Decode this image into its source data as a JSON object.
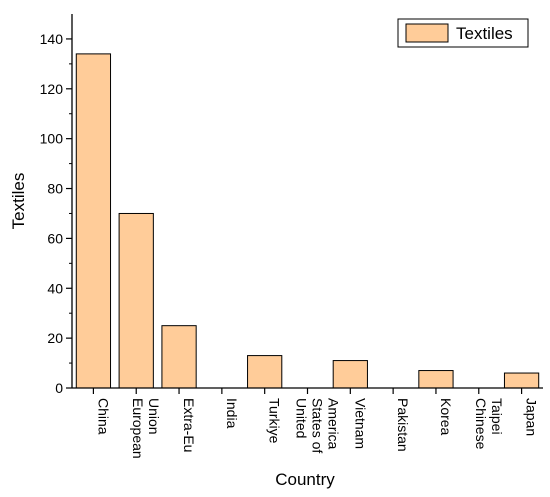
{
  "chart_data": {
    "type": "bar",
    "title": "",
    "xlabel": "Country",
    "ylabel": "Textiles",
    "ylim": [
      0,
      150
    ],
    "yticks": [
      0,
      20,
      40,
      60,
      80,
      100,
      120,
      140
    ],
    "grid": false,
    "legend_position": "top-right",
    "categories": [
      [
        "China"
      ],
      [
        "European",
        "Union"
      ],
      [
        "Extra-Eu"
      ],
      [
        "India"
      ],
      [
        "Turkiye"
      ],
      [
        "United",
        "States of",
        "America"
      ],
      [
        "Vietnam"
      ],
      [
        "Pakistan"
      ],
      [
        "Korea"
      ],
      [
        "Chinese",
        "Taipei"
      ],
      [
        "Japan"
      ]
    ],
    "series": [
      {
        "name": "Textiles",
        "color": "#FFCC99",
        "values": [
          134,
          70,
          25,
          0,
          13,
          0,
          11,
          0,
          7,
          0,
          6
        ]
      }
    ]
  }
}
